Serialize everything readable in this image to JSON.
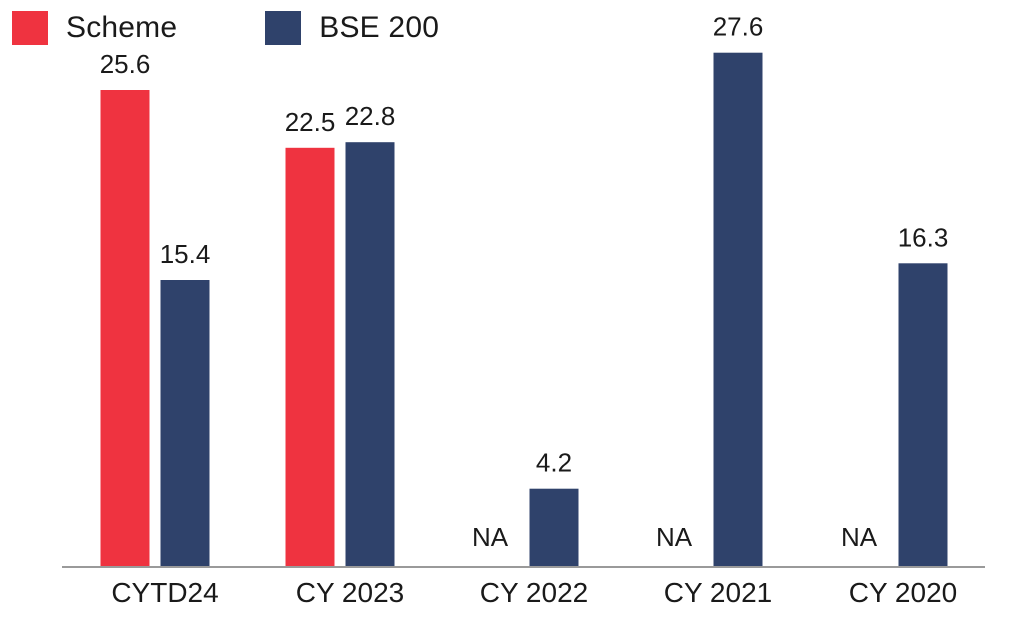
{
  "colors": {
    "scheme": "#ef3340",
    "bse200": "#2f426b",
    "axis": "#9a9a9a",
    "text": "#1a1a1a"
  },
  "legend": [
    {
      "label": "Scheme",
      "color": "#ef3340"
    },
    {
      "label": "BSE 200",
      "color": "#2f426b"
    }
  ],
  "chart_data": {
    "type": "bar",
    "categories": [
      "CYTD24",
      "CY 2023",
      "CY 2022",
      "CY 2021",
      "CY 2020"
    ],
    "series": [
      {
        "name": "Scheme",
        "values": [
          25.6,
          22.5,
          null,
          null,
          null
        ],
        "labels": [
          "25.6",
          "22.5",
          "NA",
          "NA",
          "NA"
        ]
      },
      {
        "name": "BSE 200",
        "values": [
          15.4,
          22.8,
          4.2,
          27.6,
          16.3
        ],
        "labels": [
          "15.4",
          "22.8",
          "4.2",
          "27.6",
          "16.3"
        ]
      }
    ],
    "ylim": [
      0,
      30
    ],
    "grid": false,
    "legend_position": "top-left"
  }
}
